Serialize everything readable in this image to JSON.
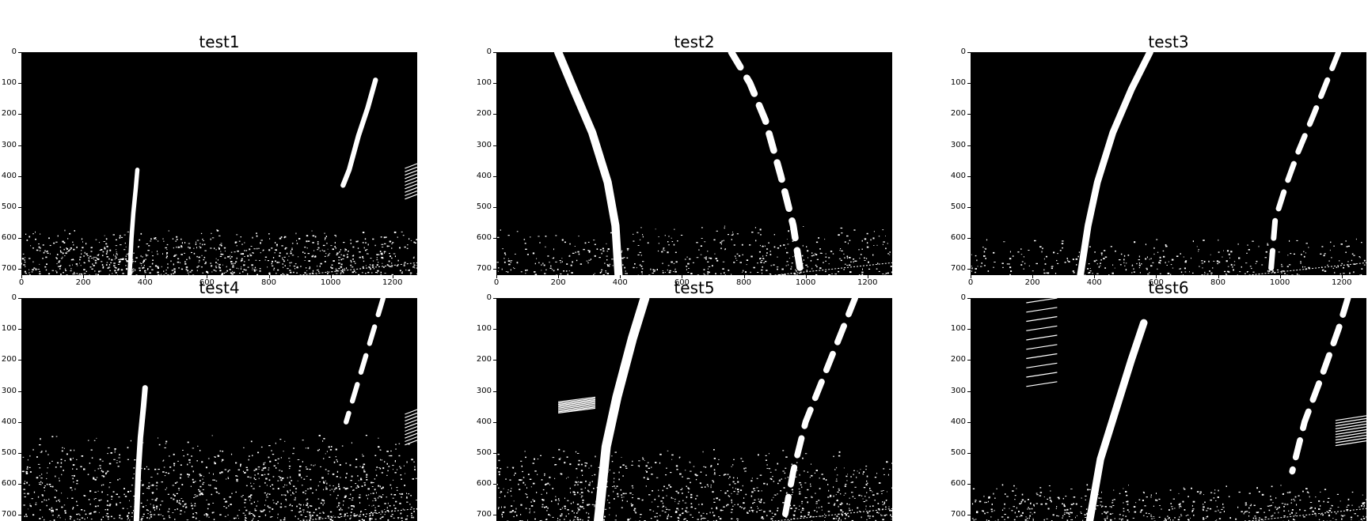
{
  "figure": {
    "panels": [
      {
        "title": "test1",
        "show_xticks": true
      },
      {
        "title": "test2",
        "show_xticks": true
      },
      {
        "title": "test3",
        "show_xticks": true
      },
      {
        "title": "test4",
        "show_xticks": false
      },
      {
        "title": "test5",
        "show_xticks": false
      },
      {
        "title": "test6",
        "show_xticks": false
      }
    ],
    "x_ticks": [
      "0",
      "200",
      "400",
      "600",
      "800",
      "1000",
      "1200"
    ],
    "x_tick_values": [
      0,
      200,
      400,
      600,
      800,
      1000,
      1200
    ],
    "y_ticks": [
      "0",
      "100",
      "200",
      "300",
      "400",
      "500",
      "600",
      "700"
    ],
    "y_tick_values": [
      0,
      100,
      200,
      300,
      400,
      500,
      600,
      700
    ],
    "x_range": [
      0,
      1280
    ],
    "y_range": [
      0,
      720
    ],
    "colors": {
      "background": "#000000",
      "foreground": "#ffffff"
    }
  }
}
